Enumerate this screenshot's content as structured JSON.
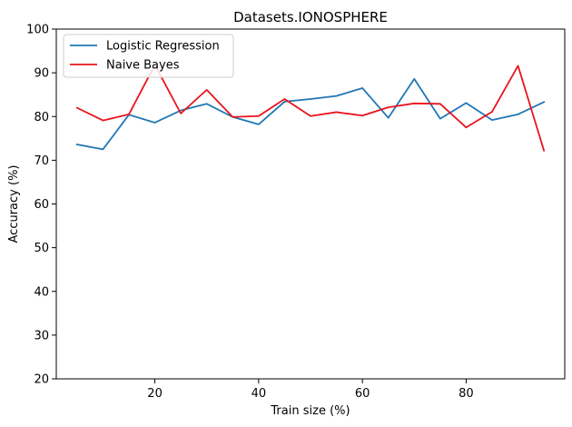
{
  "chart_data": {
    "type": "line",
    "title": "Datasets.IONOSPHERE",
    "xlabel": "Train size (%)",
    "ylabel": "Accuracy (%)",
    "xlim": [
      1,
      99
    ],
    "ylim": [
      20,
      100
    ],
    "xticks": [
      20,
      40,
      60,
      80
    ],
    "yticks": [
      20,
      30,
      40,
      50,
      60,
      70,
      80,
      90,
      100
    ],
    "grid": false,
    "legend_position": "top-left",
    "x": [
      5,
      10,
      15,
      20,
      25,
      30,
      35,
      40,
      45,
      50,
      55,
      60,
      65,
      70,
      75,
      80,
      85,
      90,
      95
    ],
    "series": [
      {
        "name": "Logistic Regression",
        "color": "#1f77b4",
        "values": [
          73.6,
          72.5,
          80.4,
          78.6,
          81.4,
          82.9,
          79.9,
          78.2,
          83.4,
          84.0,
          84.7,
          86.5,
          79.7,
          88.6,
          79.5,
          83.1,
          79.2,
          80.5,
          83.3
        ]
      },
      {
        "name": "Naive Bayes",
        "color": "#e8141c",
        "values": [
          82.0,
          79.1,
          80.5,
          91.8,
          80.7,
          86.1,
          79.9,
          80.1,
          84.0,
          80.1,
          81.0,
          80.2,
          82.1,
          83.0,
          82.9,
          77.5,
          81.1,
          91.6,
          72.2
        ]
      }
    ]
  }
}
